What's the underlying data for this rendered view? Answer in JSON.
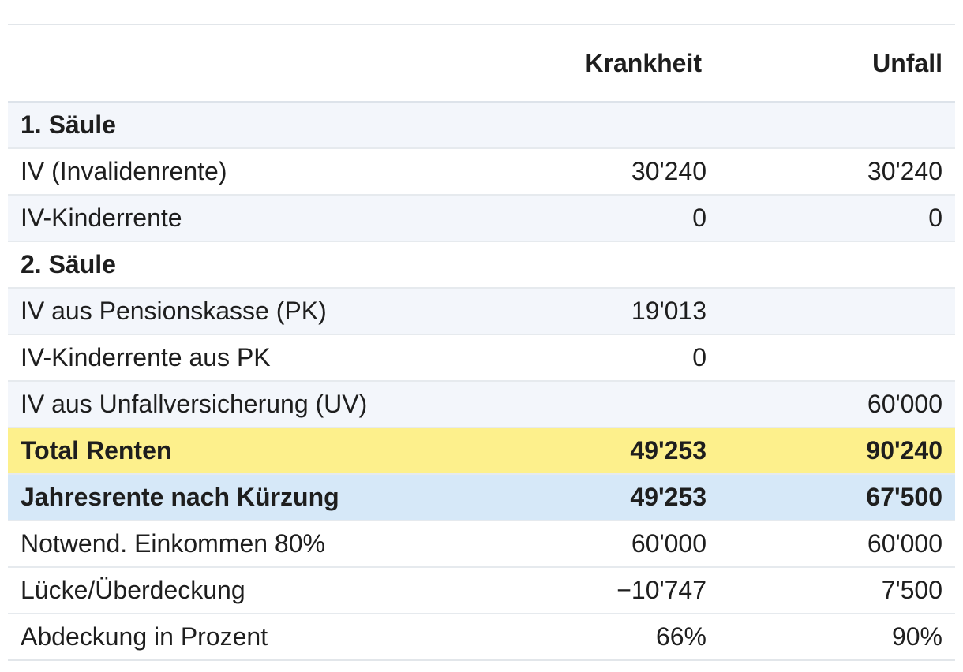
{
  "header": {
    "col1": "",
    "col2": "Krankheit",
    "col3": "Unfall"
  },
  "rows": [
    {
      "label": "1. Säule",
      "krankheit": "",
      "unfall": ""
    },
    {
      "label": "IV (Invalidenrente)",
      "krankheit": "30'240",
      "unfall": "30'240"
    },
    {
      "label": "IV-Kinderrente",
      "krankheit": "0",
      "unfall": "0"
    },
    {
      "label": "2. Säule",
      "krankheit": "",
      "unfall": ""
    },
    {
      "label": "IV aus Pensionskasse (PK)",
      "krankheit": "19'013",
      "unfall": ""
    },
    {
      "label": "IV-Kinderrente aus PK",
      "krankheit": "0",
      "unfall": ""
    },
    {
      "label": "IV aus Unfallversicherung (UV)",
      "krankheit": "",
      "unfall": "60'000"
    },
    {
      "label": "Total Renten",
      "krankheit": "49'253",
      "unfall": "90'240"
    },
    {
      "label": "Jahresrente nach Kürzung",
      "krankheit": "49'253",
      "unfall": "67'500"
    },
    {
      "label": "Notwend. Einkommen 80%",
      "krankheit": "60'000",
      "unfall": "60'000"
    },
    {
      "label": "Lücke/Überdeckung",
      "krankheit": "−10'747",
      "unfall": "7'500"
    },
    {
      "label": "Abdeckung in Prozent",
      "krankheit": "66%",
      "unfall": "90%"
    }
  ],
  "colors": {
    "total_highlight": "#fdf08c",
    "reduced_highlight": "#d6e8f8",
    "alt_row": "#f3f6fb"
  }
}
